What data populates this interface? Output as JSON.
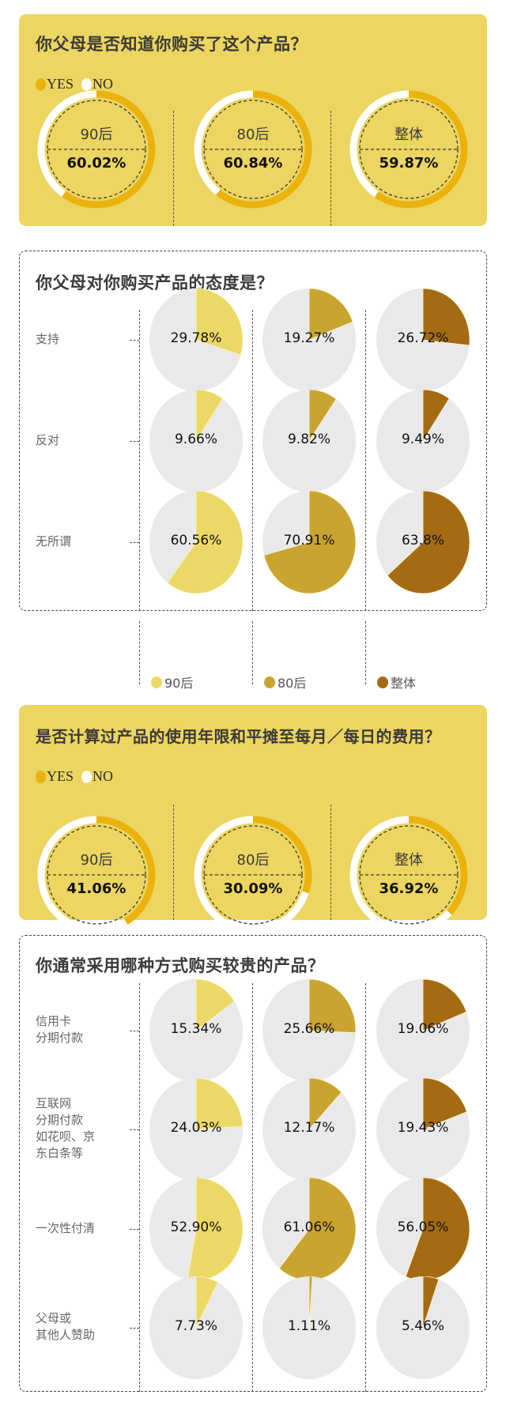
{
  "colors": {
    "panel_yellow": "#ecd560",
    "yes_orange": "#eab20c",
    "no_white": "#ffffff",
    "pie_bg": "#e9e8ea",
    "c90": "#ecd866",
    "c80": "#c9a431",
    "call": "#a46b12"
  },
  "panel1": {
    "title": "你父母是否知道你购买了这个产品？",
    "legend_yes": "YES",
    "legend_no": "NO",
    "rings": [
      {
        "label": "90后",
        "value": "60.02%"
      },
      {
        "label": "80后",
        "value": "60.84%"
      },
      {
        "label": "整体",
        "value": "59.87%"
      }
    ]
  },
  "panel2": {
    "title": "你父母对你购买产品的态度是？",
    "rows": [
      {
        "label": "支持",
        "values": [
          "29.78%",
          "19.27%",
          "26.72%"
        ]
      },
      {
        "label": "反对",
        "values": [
          "9.66%",
          "9.82%",
          "9.49%"
        ]
      },
      {
        "label": "无所谓",
        "values": [
          "60.56%",
          "70.91%",
          "63.8%"
        ]
      }
    ]
  },
  "legend": {
    "items": [
      {
        "label": "90后"
      },
      {
        "label": "80后"
      },
      {
        "label": "整体"
      }
    ]
  },
  "panel3": {
    "title": "是否计算过产品的使用年限和平摊至每月／每日的费用？",
    "legend_yes": "YES",
    "legend_no": "NO",
    "rings": [
      {
        "label": "90后",
        "value": "41.06%"
      },
      {
        "label": "80后",
        "value": "30.09%"
      },
      {
        "label": "整体",
        "value": "36.92%"
      }
    ]
  },
  "panel4": {
    "title": "你通常采用哪种方式购买较贵的产品？",
    "rows": [
      {
        "label_lines": [
          "信用卡",
          "分期付款"
        ],
        "values": [
          "15.34%",
          "25.66%",
          "19.06%"
        ]
      },
      {
        "label_lines": [
          "互联网",
          "分期付款",
          "如花呗、京",
          "东白条等"
        ],
        "values": [
          "24.03%",
          "12.17%",
          "19.43%"
        ]
      },
      {
        "label_lines": [
          "一次性付清"
        ],
        "values": [
          "52.90%",
          "61.06%",
          "56.05%"
        ]
      },
      {
        "label_lines": [
          "父母或",
          "其他人赞助"
        ],
        "values": [
          "7.73%",
          "1.11%",
          "5.46%"
        ]
      }
    ]
  },
  "chart_data": [
    {
      "type": "pie",
      "title": "你父母是否知道你购买了这个产品？",
      "legend": [
        "YES",
        "NO"
      ],
      "categories": [
        "90后",
        "80后",
        "整体"
      ],
      "series": [
        {
          "name": "YES",
          "values": [
            60.02,
            60.84,
            59.87
          ]
        },
        {
          "name": "NO",
          "values": [
            39.98,
            39.16,
            40.13
          ]
        }
      ],
      "style": "donut ring"
    },
    {
      "type": "pie",
      "title": "你父母对你购买产品的态度是？",
      "categories": [
        "支持",
        "反对",
        "无所谓"
      ],
      "series": [
        {
          "name": "90后",
          "values": [
            29.78,
            9.66,
            60.56
          ]
        },
        {
          "name": "80后",
          "values": [
            19.27,
            9.82,
            70.91
          ]
        },
        {
          "name": "整体",
          "values": [
            26.72,
            9.49,
            63.8
          ]
        }
      ],
      "legend": [
        "90后",
        "80后",
        "整体"
      ]
    },
    {
      "type": "pie",
      "title": "是否计算过产品的使用年限和平摊至每月／每日的费用？",
      "legend": [
        "YES",
        "NO"
      ],
      "categories": [
        "90后",
        "80后",
        "整体"
      ],
      "series": [
        {
          "name": "YES",
          "values": [
            41.06,
            30.09,
            36.92
          ]
        },
        {
          "name": "NO",
          "values": [
            58.94,
            69.91,
            63.08
          ]
        }
      ],
      "style": "donut ring"
    },
    {
      "type": "pie",
      "title": "你通常采用哪种方式购买较贵的产品？",
      "categories": [
        "信用卡分期付款",
        "互联网分期付款如花呗、京东白条等",
        "一次性付清",
        "父母或其他人赞助"
      ],
      "series": [
        {
          "name": "90后",
          "values": [
            15.34,
            24.03,
            52.9,
            7.73
          ]
        },
        {
          "name": "80后",
          "values": [
            25.66,
            12.17,
            61.06,
            1.11
          ]
        },
        {
          "name": "整体",
          "values": [
            19.06,
            19.43,
            56.05,
            5.46
          ]
        }
      ],
      "legend": [
        "90后",
        "80后",
        "整体"
      ]
    }
  ]
}
